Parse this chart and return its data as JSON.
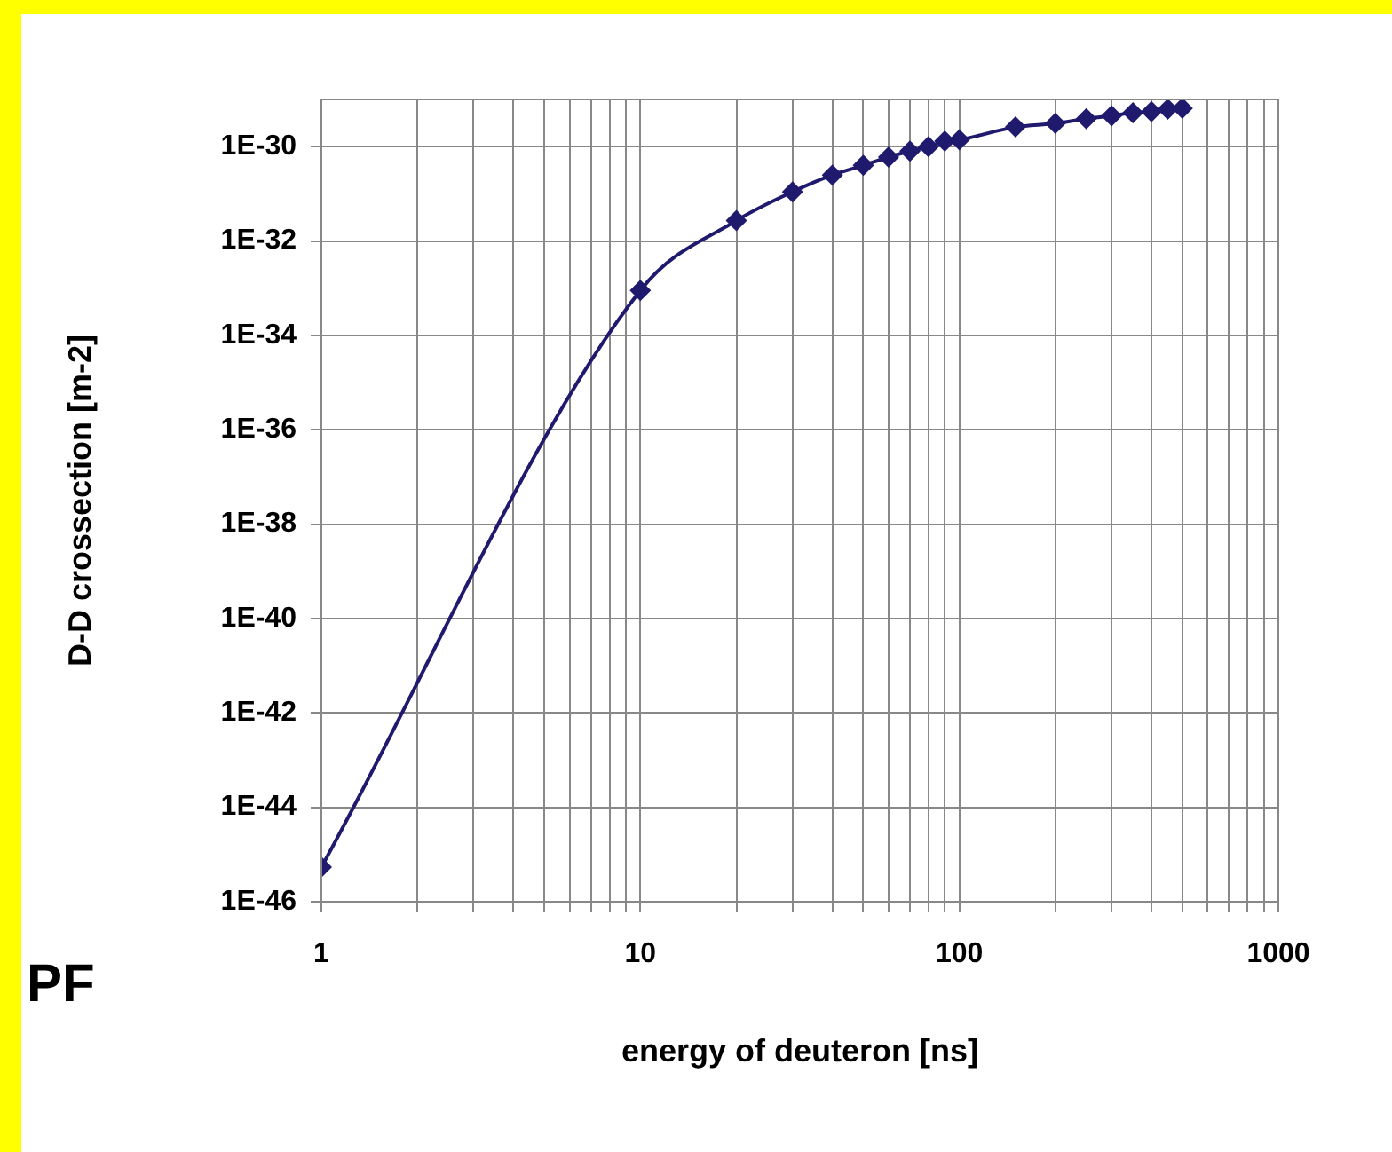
{
  "chart_data": {
    "type": "line",
    "xlabel": "energy of deuteron [ns]",
    "ylabel": "D-D crossection [m-2]",
    "annotations": [
      "PF"
    ],
    "log": "xy",
    "grid": true,
    "legend": false,
    "marker": "diamond",
    "line_style": "solid",
    "x": [
      1,
      10,
      20,
      30,
      40,
      50,
      60,
      70,
      80,
      90,
      100,
      150,
      200,
      250,
      300,
      350,
      400,
      450,
      500
    ],
    "series": [
      {
        "color": "#1f1a6e",
        "values": [
          5.4e-46,
          9e-34,
          2.7e-32,
          1.1e-31,
          2.5e-31,
          4e-31,
          6e-31,
          8e-31,
          1e-30,
          1.3e-30,
          1.4e-30,
          2.6e-30,
          3.1e-30,
          3.9e-30,
          4.5e-30,
          5.2e-30,
          5.5e-30,
          6.2e-30,
          6.5e-30
        ]
      }
    ],
    "xlim": [
      1,
      1000
    ],
    "xticks": [
      1,
      {
        "value": 2,
        "label": null
      },
      {
        "value": 3,
        "label": null
      },
      {
        "value": 4,
        "label": null
      },
      {
        "value": 5,
        "label": null
      },
      {
        "value": 6,
        "label": null
      },
      {
        "value": 7,
        "label": null
      },
      {
        "value": 8,
        "label": null
      },
      {
        "value": 9,
        "label": null
      },
      10,
      {
        "value": 20,
        "label": null
      },
      {
        "value": 30,
        "label": null
      },
      {
        "value": 40,
        "label": null
      },
      {
        "value": 50,
        "label": null
      },
      {
        "value": 60,
        "label": null
      },
      {
        "value": 70,
        "label": null
      },
      {
        "value": 80,
        "label": null
      },
      {
        "value": 90,
        "label": null
      },
      100,
      {
        "value": 200,
        "label": null
      },
      {
        "value": 300,
        "label": null
      },
      {
        "value": 400,
        "label": null
      },
      {
        "value": 500,
        "label": null
      },
      {
        "value": 600,
        "label": null
      },
      {
        "value": 700,
        "label": null
      },
      {
        "value": 800,
        "label": null
      },
      {
        "value": 900,
        "label": null
      },
      1000
    ],
    "ylim": [
      1e-46,
      1e-29
    ],
    "yticks": [
      {
        "value": 1e-46,
        "label": "1E-46"
      },
      {
        "value": 1e-44,
        "label": "1E-44"
      },
      {
        "value": 1e-42,
        "label": "1E-42"
      },
      {
        "value": 1e-40,
        "label": "1E-40"
      },
      {
        "value": 1e-38,
        "label": "1E-38"
      },
      {
        "value": 1e-36,
        "label": "1E-36"
      },
      {
        "value": 1e-34,
        "label": "1E-34"
      },
      {
        "value": 1e-32,
        "label": "1E-32"
      },
      {
        "value": 1e-30,
        "label": "1E-30"
      }
    ]
  }
}
